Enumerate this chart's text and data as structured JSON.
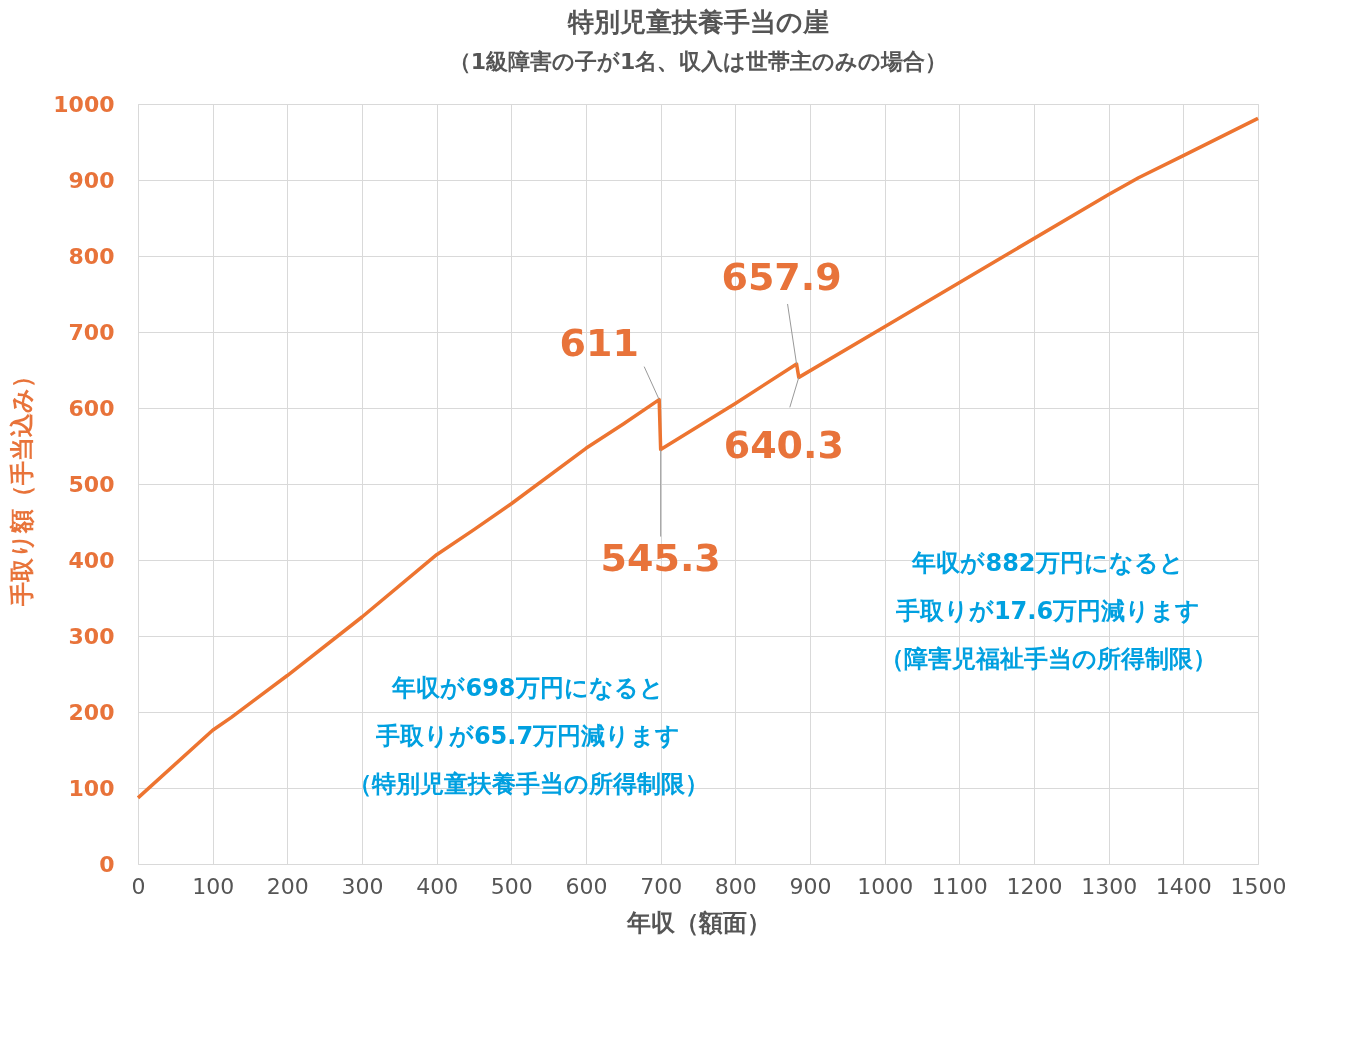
{
  "chart_data": {
    "type": "line",
    "title": "特別児童扶養手当の崖",
    "subtitle": "（1級障害の子が1名、収入は世帯主のみの場合）",
    "xlabel": "年収（額面）",
    "ylabel": "手取り額（手当込み）",
    "series": [
      {
        "color": "#ed7430",
        "x": [
          0,
          100,
          125,
          200,
          300,
          400,
          450,
          500,
          600,
          650,
          698,
          700,
          800,
          882,
          885,
          1000,
          1300,
          1340,
          1400,
          1500
        ],
        "values": [
          87,
          176,
          193,
          248,
          325,
          407,
          440,
          474,
          547,
          579,
          611,
          545.3,
          606,
          657.9,
          640.3,
          707,
          881,
          903,
          932,
          981
        ],
        "value_labels": [
          null,
          null,
          null,
          null,
          null,
          null,
          null,
          null,
          null,
          null,
          "611",
          "545.3",
          null,
          "657.9",
          "640.3",
          null,
          null,
          null,
          null,
          null
        ]
      }
    ],
    "xlim": [
      0,
      1500
    ],
    "xticks": [
      0,
      100,
      200,
      300,
      400,
      500,
      600,
      700,
      800,
      900,
      1000,
      1100,
      1200,
      1300,
      1400,
      1500
    ],
    "ylim": [
      0,
      1000
    ],
    "yticks": [
      0,
      100,
      200,
      300,
      400,
      500,
      600,
      700,
      800,
      900,
      1000
    ],
    "grid": true,
    "line_style": "solid",
    "marker": "none",
    "annotations": [
      "年収が698万円になると",
      "手取りが65.7万円減ります",
      "（特別児童扶養手当の所得制限）",
      "年収が882万円になると",
      "手取りが17.6万円減ります",
      "（障害児福祉手当の所得制限）"
    ]
  }
}
